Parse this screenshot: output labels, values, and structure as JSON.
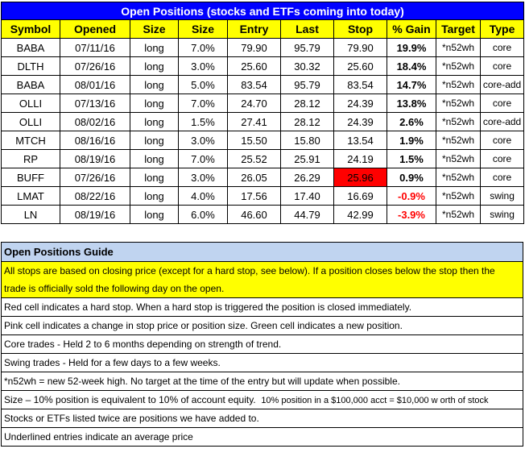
{
  "positions": {
    "title": "Open Positions (stocks and ETFs coming into today)",
    "headers": [
      "Symbol",
      "Opened",
      "Size",
      "Size",
      "Entry",
      "Last",
      "Stop",
      "% Gain",
      "Target",
      "Type"
    ],
    "rows": [
      {
        "symbol": "BABA",
        "opened": "07/11/16",
        "size": "long",
        "pct": "7.0%",
        "entry": "79.90",
        "last": "95.79",
        "stop": "79.90",
        "gain": "19.9%",
        "target": "*n52wh",
        "type": "core"
      },
      {
        "symbol": "DLTH",
        "opened": "07/26/16",
        "size": "long",
        "pct": "3.0%",
        "entry": "25.60",
        "last": "30.32",
        "stop": "25.60",
        "gain": "18.4%",
        "target": "*n52wh",
        "type": "core"
      },
      {
        "symbol": "BABA",
        "opened": "08/01/16",
        "size": "long",
        "pct": "5.0%",
        "entry": "83.54",
        "last": "95.79",
        "stop": "83.54",
        "gain": "14.7%",
        "target": "*n52wh",
        "type": "core-add"
      },
      {
        "symbol": "OLLI",
        "opened": "07/13/16",
        "size": "long",
        "pct": "7.0%",
        "entry": "24.70",
        "last": "28.12",
        "stop": "24.39",
        "gain": "13.8%",
        "target": "*n52wh",
        "type": "core"
      },
      {
        "symbol": "OLLI",
        "opened": "08/02/16",
        "size": "long",
        "pct": "1.5%",
        "entry": "27.41",
        "last": "28.12",
        "stop": "24.39",
        "gain": "2.6%",
        "target": "*n52wh",
        "type": "core-add"
      },
      {
        "symbol": "MTCH",
        "opened": "08/16/16",
        "size": "long",
        "pct": "3.0%",
        "entry": "15.50",
        "last": "15.80",
        "stop": "13.54",
        "gain": "1.9%",
        "target": "*n52wh",
        "type": "core"
      },
      {
        "symbol": "RP",
        "opened": "08/19/16",
        "size": "long",
        "pct": "7.0%",
        "entry": "25.52",
        "last": "25.91",
        "stop": "24.19",
        "gain": "1.5%",
        "target": "*n52wh",
        "type": "core"
      },
      {
        "symbol": "BUFF",
        "opened": "07/26/16",
        "size": "long",
        "pct": "3.0%",
        "entry": "26.05",
        "last": "26.29",
        "stop": "25.96",
        "gain": "0.9%",
        "target": "*n52wh",
        "type": "core"
      },
      {
        "symbol": "LMAT",
        "opened": "08/22/16",
        "size": "long",
        "pct": "4.0%",
        "entry": "17.56",
        "last": "17.40",
        "stop": "16.69",
        "gain": "-0.9%",
        "target": "*n52wh",
        "type": "swing"
      },
      {
        "symbol": "LN",
        "opened": "08/19/16",
        "size": "long",
        "pct": "6.0%",
        "entry": "46.60",
        "last": "44.79",
        "stop": "42.99",
        "gain": "-3.9%",
        "target": "*n52wh",
        "type": "swing"
      }
    ]
  },
  "guide": {
    "title": "Open Positions Guide",
    "stops_line1": "All stops are based on closing price (except for a hard stop, see below).  If a position closes below the stop  then the",
    "stops_line2": "trade is officially sold the following day on the open.",
    "red_cell": "Red cell indicates a hard stop.  When a hard stop is triggered the position is closed immediately.",
    "pink_cell": "Pink cell indicates a change in stop price or position size.  Green cell indicates a new position.",
    "core": "Core trades -  Held 2 to 6 months depending on strength of trend.",
    "swing": "Swing trades - Held for a few days to a few weeks.",
    "n52wh": "*n52wh = new 52-week high. No target at the time of the entry but will update when possible.",
    "size_main": "Size – 10% position is equivalent to 10% of account equity.",
    "size_example": "10% position in a $100,000 acct = $10,000 w orth of stock",
    "listed_twice": "Stocks or ETFs listed twice are positions we have added to.",
    "underlined": "Underlined entries indicate an average price"
  },
  "colors": {
    "title_bg": "#0000FF",
    "header_bg": "#FFFF00",
    "hard_stop": "#FF0000",
    "negative_gain": "#FF0000",
    "guide_title_bg": "#C0D4F0",
    "highlight": "#FFFF00"
  }
}
